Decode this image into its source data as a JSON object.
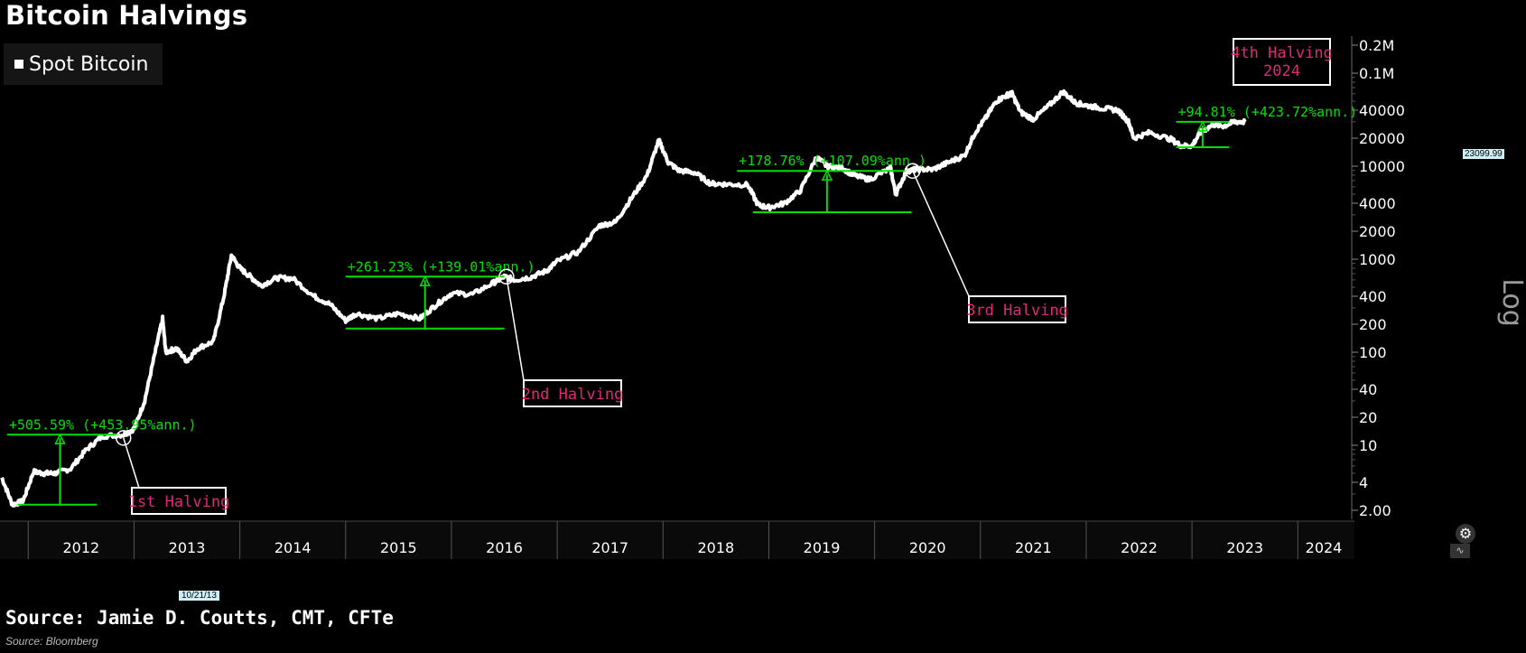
{
  "title": "Bitcoin Halvings",
  "legend": {
    "label": "Spot Bitcoin"
  },
  "source_main": "Source: Jamie D. Coutts, CMT, CFTe",
  "source_small": "Source: Bloomberg",
  "date_flag": "10/21/13",
  "price_flag": "23099.99",
  "axis_label": "Log",
  "colors": {
    "line": "#ffffff",
    "annotation": "#00e000",
    "halving_label": "#e0287a",
    "background": "#000000"
  },
  "chart_data": {
    "type": "line",
    "xlabel": "",
    "ylabel": "",
    "y_scale": "log",
    "x_ticks": [
      "2012",
      "2013",
      "2014",
      "2015",
      "2016",
      "2017",
      "2018",
      "2019",
      "2020",
      "2021",
      "2022",
      "2023",
      "2024"
    ],
    "y_ticks": [
      {
        "v": 200000,
        "label": "0.2M"
      },
      {
        "v": 100000,
        "label": "0.1M"
      },
      {
        "v": 40000,
        "label": "40000"
      },
      {
        "v": 20000,
        "label": "20000"
      },
      {
        "v": 10000,
        "label": "10000"
      },
      {
        "v": 4000,
        "label": "4000"
      },
      {
        "v": 2000,
        "label": "2000"
      },
      {
        "v": 1000,
        "label": "1000"
      },
      {
        "v": 400,
        "label": "400"
      },
      {
        "v": 200,
        "label": "200"
      },
      {
        "v": 100,
        "label": "100"
      },
      {
        "v": 40,
        "label": "40"
      },
      {
        "v": 20,
        "label": "20"
      },
      {
        "v": 10,
        "label": "10"
      },
      {
        "v": 4,
        "label": "4"
      },
      {
        "v": 2,
        "label": "2.00"
      }
    ],
    "series": [
      {
        "values": [
          [
            2011.75,
            4.5
          ],
          [
            2011.85,
            2.3
          ],
          [
            2011.95,
            2.5
          ],
          [
            2012.05,
            5.2
          ],
          [
            2012.15,
            5.0
          ],
          [
            2012.25,
            5.0
          ],
          [
            2012.4,
            5.6
          ],
          [
            2012.55,
            9
          ],
          [
            2012.7,
            12.5
          ],
          [
            2012.9,
            13
          ],
          [
            2013.0,
            15
          ],
          [
            2013.1,
            30
          ],
          [
            2013.2,
            100
          ],
          [
            2013.27,
            230
          ],
          [
            2013.3,
            100
          ],
          [
            2013.4,
            110
          ],
          [
            2013.5,
            80
          ],
          [
            2013.6,
            110
          ],
          [
            2013.75,
            130
          ],
          [
            2013.85,
            400
          ],
          [
            2013.92,
            1100
          ],
          [
            2014.0,
            800
          ],
          [
            2014.1,
            650
          ],
          [
            2014.2,
            520
          ],
          [
            2014.35,
            630
          ],
          [
            2014.5,
            620
          ],
          [
            2014.7,
            400
          ],
          [
            2014.85,
            330
          ],
          [
            2015.0,
            220
          ],
          [
            2015.1,
            260
          ],
          [
            2015.3,
            230
          ],
          [
            2015.5,
            260
          ],
          [
            2015.7,
            230
          ],
          [
            2015.85,
            320
          ],
          [
            2016.0,
            430
          ],
          [
            2016.2,
            420
          ],
          [
            2016.4,
            560
          ],
          [
            2016.5,
            650
          ],
          [
            2016.6,
            600
          ],
          [
            2016.75,
            640
          ],
          [
            2016.9,
            750
          ],
          [
            2017.0,
            950
          ],
          [
            2017.2,
            1200
          ],
          [
            2017.4,
            2300
          ],
          [
            2017.55,
            2500
          ],
          [
            2017.7,
            4500
          ],
          [
            2017.85,
            8000
          ],
          [
            2017.96,
            19000
          ],
          [
            2018.05,
            11000
          ],
          [
            2018.15,
            9000
          ],
          [
            2018.3,
            8500
          ],
          [
            2018.45,
            6500
          ],
          [
            2018.6,
            6400
          ],
          [
            2018.8,
            6300
          ],
          [
            2018.9,
            3800
          ],
          [
            2019.0,
            3600
          ],
          [
            2019.15,
            4000
          ],
          [
            2019.3,
            5500
          ],
          [
            2019.45,
            12500
          ],
          [
            2019.55,
            10000
          ],
          [
            2019.7,
            9500
          ],
          [
            2019.8,
            8000
          ],
          [
            2019.95,
            7200
          ],
          [
            2020.15,
            9500
          ],
          [
            2020.2,
            5000
          ],
          [
            2020.3,
            8800
          ],
          [
            2020.4,
            9300
          ],
          [
            2020.55,
            9200
          ],
          [
            2020.7,
            11000
          ],
          [
            2020.85,
            13000
          ],
          [
            2020.95,
            23000
          ],
          [
            2021.05,
            33000
          ],
          [
            2021.15,
            50000
          ],
          [
            2021.25,
            58000
          ],
          [
            2021.3,
            60000
          ],
          [
            2021.38,
            38000
          ],
          [
            2021.5,
            32000
          ],
          [
            2021.65,
            45000
          ],
          [
            2021.78,
            63000
          ],
          [
            2021.9,
            48000
          ],
          [
            2022.0,
            45000
          ],
          [
            2022.15,
            42000
          ],
          [
            2022.3,
            40000
          ],
          [
            2022.4,
            30000
          ],
          [
            2022.45,
            20000
          ],
          [
            2022.6,
            23000
          ],
          [
            2022.8,
            19500
          ],
          [
            2022.9,
            16500
          ],
          [
            2023.0,
            16600
          ],
          [
            2023.08,
            23000
          ],
          [
            2023.2,
            28000
          ],
          [
            2023.3,
            27000
          ],
          [
            2023.4,
            30000
          ],
          [
            2023.5,
            30000
          ]
        ]
      }
    ],
    "annotations": [
      {
        "label": "+505.59% (+453.95%ann.)",
        "base_from": 2011.9,
        "base_to": 2012.65,
        "base_value": 2.3,
        "top_from": 2011.8,
        "top_to": 2012.85,
        "top_value": 13,
        "arrow_x": 2012.3
      },
      {
        "label": "+261.23% (+139.01%ann.)",
        "base_from": 2015.0,
        "base_to": 2016.5,
        "base_value": 180,
        "top_from": 2015.0,
        "top_to": 2016.5,
        "top_value": 650,
        "arrow_x": 2015.75
      },
      {
        "label": "+178.76% (+107.09%ann.)",
        "base_from": 2018.85,
        "base_to": 2020.35,
        "base_value": 3200,
        "top_from": 2018.7,
        "top_to": 2020.3,
        "top_value": 8900,
        "arrow_x": 2019.55
      },
      {
        "label": "+94.81% (+423.72%ann.)",
        "base_from": 2022.85,
        "base_to": 2023.35,
        "base_value": 16000,
        "top_from": 2022.85,
        "top_to": 2023.35,
        "top_value": 30000,
        "arrow_x": 2023.1
      }
    ],
    "halvings": [
      {
        "label": "1st Halving",
        "x": 2012.9,
        "value": 12
      },
      {
        "label": "2nd Halving",
        "x": 2016.52,
        "value": 650
      },
      {
        "label": "3rd Halving",
        "x": 2020.36,
        "value": 8900
      },
      {
        "label": "4th Halving\n2024",
        "x": null,
        "value": null
      }
    ]
  }
}
